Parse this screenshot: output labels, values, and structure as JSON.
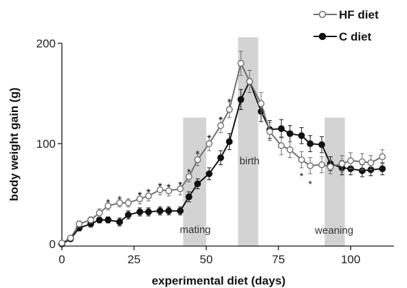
{
  "chart_data": {
    "type": "line",
    "xlabel": "experimental diet (days)",
    "ylabel": "body weight gain (g)",
    "xlim": [
      0,
      115
    ],
    "ylim": [
      0,
      200
    ],
    "x_ticks": [
      "0",
      "25",
      "50",
      "75",
      "100"
    ],
    "y_ticks": [
      "0",
      "100",
      "200"
    ],
    "legend_position": "top-right",
    "grid": false,
    "bands": [
      {
        "label": "mating",
        "x_start": 42,
        "x_end": 50,
        "y_top": 126
      },
      {
        "label": "birth",
        "x_start": 61,
        "x_end": 68,
        "y_top": 206
      },
      {
        "label": "weaning",
        "x_start": 91,
        "x_end": 98,
        "y_top": 126
      }
    ],
    "series": [
      {
        "name": "HF diet",
        "marker": "open-circle",
        "color": "#6e6e6e",
        "x": [
          0,
          3,
          6,
          10,
          13,
          16,
          20,
          23,
          27,
          30,
          34,
          37,
          41,
          44,
          47,
          51,
          55,
          58,
          62,
          65,
          69,
          72,
          76,
          79,
          83,
          86,
          90,
          93,
          97,
          100,
          104,
          107,
          111
        ],
        "y": [
          1,
          6,
          20,
          24,
          31,
          38,
          41,
          41,
          45,
          48,
          54,
          53,
          55,
          67,
          84,
          100,
          118,
          134,
          180,
          162,
          140,
          112,
          98,
          94,
          84,
          78,
          79,
          77,
          80,
          83,
          82,
          81,
          87
        ],
        "err": [
          1,
          2,
          3,
          3,
          4,
          4,
          4,
          4,
          5,
          5,
          5,
          5,
          6,
          5,
          6,
          7,
          7,
          8,
          12,
          11,
          11,
          9,
          9,
          8,
          8,
          8,
          8,
          7,
          8,
          8,
          8,
          7,
          7
        ]
      },
      {
        "name": "C diet",
        "marker": "filled-circle",
        "color": "#111111",
        "x": [
          0,
          3,
          6,
          10,
          13,
          16,
          20,
          23,
          27,
          30,
          34,
          37,
          41,
          44,
          47,
          51,
          55,
          58,
          62,
          65,
          69,
          72,
          76,
          79,
          83,
          86,
          90,
          93,
          97,
          100,
          104,
          107,
          111
        ],
        "y": [
          0,
          5,
          16,
          20,
          24,
          24,
          22,
          29,
          32,
          32,
          33,
          33,
          33,
          47,
          60,
          70,
          86,
          102,
          144,
          162,
          132,
          114,
          115,
          110,
          108,
          100,
          99,
          80,
          76,
          75,
          73,
          74,
          75
        ],
        "err": [
          1,
          2,
          3,
          3,
          3,
          3,
          4,
          4,
          4,
          4,
          4,
          4,
          4,
          5,
          5,
          6,
          7,
          8,
          10,
          11,
          10,
          9,
          9,
          8,
          8,
          8,
          8,
          7,
          7,
          6,
          6,
          6,
          6
        ]
      }
    ],
    "significance_markers": [
      {
        "x": 16,
        "y": 44,
        "label": "*"
      },
      {
        "x": 20,
        "y": 47,
        "label": "*"
      },
      {
        "x": 27,
        "y": 51,
        "label": "*"
      },
      {
        "x": 30,
        "y": 54,
        "label": "*"
      },
      {
        "x": 34,
        "y": 60,
        "label": "*"
      },
      {
        "x": 37,
        "y": 59,
        "label": "*"
      },
      {
        "x": 41,
        "y": 61,
        "label": "*"
      },
      {
        "x": 44,
        "y": 74,
        "label": "*"
      },
      {
        "x": 47,
        "y": 92,
        "label": "*"
      },
      {
        "x": 51,
        "y": 108,
        "label": "*"
      },
      {
        "x": 55,
        "y": 126,
        "label": "*"
      },
      {
        "x": 58,
        "y": 144,
        "label": "*"
      },
      {
        "x": 83,
        "y": 70,
        "label": "*"
      },
      {
        "x": 86,
        "y": 62,
        "label": "*"
      }
    ]
  }
}
